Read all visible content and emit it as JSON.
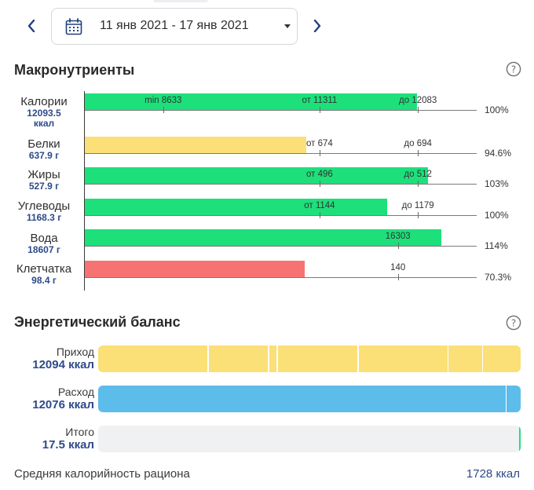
{
  "header": {
    "date_range": "11 янв 2021 - 17 янв 2021"
  },
  "macros": {
    "title": "Макронутриенты",
    "rows": [
      {
        "name": "Калории",
        "value": "12093.5",
        "unit": "ккал",
        "color": "#1de07a",
        "fill": 0.848,
        "markers": [
          {
            "label": "min 8633",
            "pos": 0.2
          },
          {
            "label": "от 11311",
            "pos": 0.599
          },
          {
            "label": "до 12083",
            "pos": 0.85
          }
        ],
        "percent": "100%"
      },
      {
        "name": "Белки",
        "value": "637.9 г",
        "color": "#fbdf77",
        "fill": 0.565,
        "markers": [
          {
            "label": "от 674",
            "pos": 0.599
          },
          {
            "label": "до 694",
            "pos": 0.85
          }
        ],
        "percent": "94.6%"
      },
      {
        "name": "Жиры",
        "value": "527.9 г",
        "color": "#1de07a",
        "fill": 0.875,
        "markers": [
          {
            "label": "от 496",
            "pos": 0.599
          },
          {
            "label": "до 512",
            "pos": 0.85
          }
        ],
        "percent": "103%"
      },
      {
        "name": "Углеводы",
        "value": "1168.3 г",
        "color": "#1de07a",
        "fill": 0.772,
        "markers": [
          {
            "label": "от 1144",
            "pos": 0.599
          },
          {
            "label": "до 1179",
            "pos": 0.85
          }
        ],
        "percent": "100%"
      },
      {
        "name": "Вода",
        "value": "18607 г",
        "color": "#1de07a",
        "fill": 0.91,
        "markers": [
          {
            "label": "16303",
            "pos": 0.799
          }
        ],
        "percent": "114%"
      },
      {
        "name": "Клетчатка",
        "value": "98.4 г",
        "color": "#f77272",
        "fill": 0.561,
        "markers": [
          {
            "label": "140",
            "pos": 0.799
          }
        ],
        "percent": "70.3%"
      }
    ]
  },
  "energy": {
    "title": "Энергетический баланс",
    "rows": [
      {
        "name": "Приход",
        "value": "12094 ккал",
        "color": "#fbdf77",
        "fill": 1.0,
        "segments": [
          0.259,
          0.402,
          0.422,
          0.614,
          0.827,
          0.908
        ]
      },
      {
        "name": "Расход",
        "value": "12076 ккал",
        "color": "#5cbcea",
        "fill": 1.0,
        "segments": [
          0.964
        ]
      },
      {
        "name": "Итого",
        "value": "17.5 ккал",
        "color": "#eff1f3",
        "fill": 1.0,
        "segments": []
      }
    ],
    "balance_edge_color": "#1de07a",
    "avg_label": "Средняя калорийность рациона",
    "avg_value": "1728 ккал"
  }
}
